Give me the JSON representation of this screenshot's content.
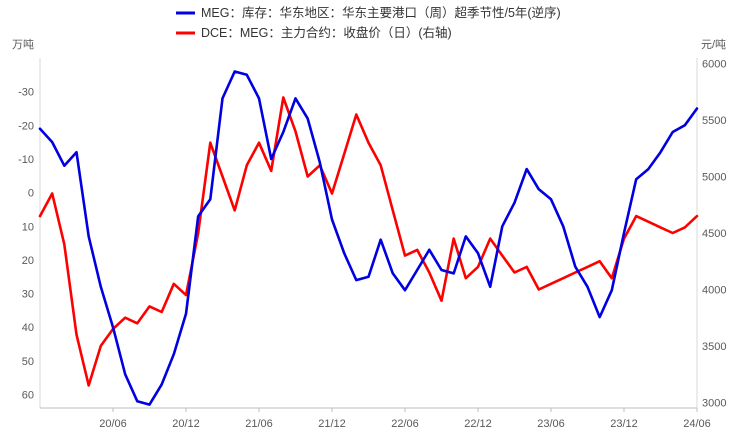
{
  "chart_data": {
    "type": "line",
    "legend_position": "top-center",
    "grid": false,
    "series": [
      {
        "name": "MEG：库存：华东地区：华东主要港口（周）超季节性/5年(逆序)",
        "axis": "left",
        "color": "#0000e0",
        "points": [
          [
            "2019-12",
            -19
          ],
          [
            "2020-01",
            -15
          ],
          [
            "2020-02",
            -8
          ],
          [
            "2020-03",
            -12
          ],
          [
            "2020-04",
            13
          ],
          [
            "2020-05",
            28
          ],
          [
            "2020-06",
            40
          ],
          [
            "2020-07",
            54
          ],
          [
            "2020-08",
            62
          ],
          [
            "2020-09",
            63
          ],
          [
            "2020-10",
            57
          ],
          [
            "2020-11",
            48
          ],
          [
            "2020-12",
            36
          ],
          [
            "2021-01",
            7
          ],
          [
            "2021-02",
            2
          ],
          [
            "2021-03",
            -28
          ],
          [
            "2021-04",
            -36
          ],
          [
            "2021-05",
            -35
          ],
          [
            "2021-06",
            -28
          ],
          [
            "2021-07",
            -10
          ],
          [
            "2021-08",
            -18
          ],
          [
            "2021-09",
            -28
          ],
          [
            "2021-10",
            -22
          ],
          [
            "2021-11",
            -9
          ],
          [
            "2021-12",
            8
          ],
          [
            "2022-01",
            18
          ],
          [
            "2022-02",
            26
          ],
          [
            "2022-03",
            25
          ],
          [
            "2022-04",
            14
          ],
          [
            "2022-05",
            24
          ],
          [
            "2022-06",
            29
          ],
          [
            "2022-07",
            23
          ],
          [
            "2022-08",
            17
          ],
          [
            "2022-09",
            23
          ],
          [
            "2022-10",
            24
          ],
          [
            "2022-11",
            13
          ],
          [
            "2022-12",
            18
          ],
          [
            "2023-01",
            28
          ],
          [
            "2023-02",
            10
          ],
          [
            "2023-03",
            3
          ],
          [
            "2023-04",
            -7
          ],
          [
            "2023-05",
            -1
          ],
          [
            "2023-06",
            2
          ],
          [
            "2023-07",
            10
          ],
          [
            "2023-08",
            22
          ],
          [
            "2023-09",
            28
          ],
          [
            "2023-10",
            37
          ],
          [
            "2023-11",
            29
          ],
          [
            "2023-12",
            12
          ],
          [
            "2024-01",
            -4
          ],
          [
            "2024-02",
            -7
          ],
          [
            "2024-03",
            -12
          ],
          [
            "2024-04",
            -18
          ],
          [
            "2024-05",
            -20
          ],
          [
            "2024-06",
            -25
          ]
        ]
      },
      {
        "name": "DCE：MEG：主力合约：收盘价（日）(右轴)",
        "axis": "right",
        "color": "#ff0000",
        "points": [
          [
            "2019-12",
            4650
          ],
          [
            "2020-01",
            4850
          ],
          [
            "2020-02",
            4400
          ],
          [
            "2020-03",
            3600
          ],
          [
            "2020-04",
            3150
          ],
          [
            "2020-05",
            3500
          ],
          [
            "2020-06",
            3650
          ],
          [
            "2020-07",
            3750
          ],
          [
            "2020-08",
            3700
          ],
          [
            "2020-09",
            3850
          ],
          [
            "2020-10",
            3800
          ],
          [
            "2020-11",
            4050
          ],
          [
            "2020-12",
            3950
          ],
          [
            "2021-01",
            4500
          ],
          [
            "2021-02",
            5300
          ],
          [
            "2021-03",
            5000
          ],
          [
            "2021-04",
            4700
          ],
          [
            "2021-05",
            5100
          ],
          [
            "2021-06",
            5300
          ],
          [
            "2021-07",
            5050
          ],
          [
            "2021-08",
            5700
          ],
          [
            "2021-09",
            5400
          ],
          [
            "2021-10",
            5000
          ],
          [
            "2021-11",
            5100
          ],
          [
            "2021-12",
            4850
          ],
          [
            "2022-01",
            5200
          ],
          [
            "2022-02",
            5550
          ],
          [
            "2022-03",
            5300
          ],
          [
            "2022-04",
            5100
          ],
          [
            "2022-05",
            4700
          ],
          [
            "2022-06",
            4300
          ],
          [
            "2022-07",
            4350
          ],
          [
            "2022-08",
            4150
          ],
          [
            "2022-09",
            3900
          ],
          [
            "2022-10",
            4450
          ],
          [
            "2022-11",
            4100
          ],
          [
            "2022-12",
            4200
          ],
          [
            "2023-01",
            4450
          ],
          [
            "2023-02",
            4300
          ],
          [
            "2023-03",
            4150
          ],
          [
            "2023-04",
            4200
          ],
          [
            "2023-05",
            4000
          ],
          [
            "2023-06",
            4050
          ],
          [
            "2023-07",
            4100
          ],
          [
            "2023-08",
            4150
          ],
          [
            "2023-09",
            4200
          ],
          [
            "2023-10",
            4250
          ],
          [
            "2023-11",
            4100
          ],
          [
            "2023-12",
            4450
          ],
          [
            "2024-01",
            4650
          ],
          [
            "2024-02",
            4600
          ],
          [
            "2024-03",
            4550
          ],
          [
            "2024-04",
            4500
          ],
          [
            "2024-05",
            4550
          ],
          [
            "2024-06",
            4650
          ]
        ]
      }
    ],
    "x_ticks": [
      "20/06",
      "20/12",
      "21/06",
      "21/12",
      "22/06",
      "22/12",
      "23/06",
      "23/12",
      "24/06"
    ],
    "x_tick_dates": [
      "2020-06",
      "2020-12",
      "2021-06",
      "2021-12",
      "2022-06",
      "2022-12",
      "2023-06",
      "2023-12",
      "2024-06"
    ],
    "x_range": [
      "2019-12",
      "2024-06"
    ],
    "left_axis": {
      "unit": "万吨",
      "reversed": true,
      "range": [
        -40,
        64
      ],
      "ticks": [
        -30,
        -20,
        -10,
        0,
        10,
        20,
        30,
        40,
        50,
        60
      ]
    },
    "right_axis": {
      "unit": "元/吨",
      "range": [
        2950,
        6050
      ],
      "ticks": [
        3000,
        3500,
        4000,
        4500,
        5000,
        5500,
        6000
      ]
    }
  }
}
